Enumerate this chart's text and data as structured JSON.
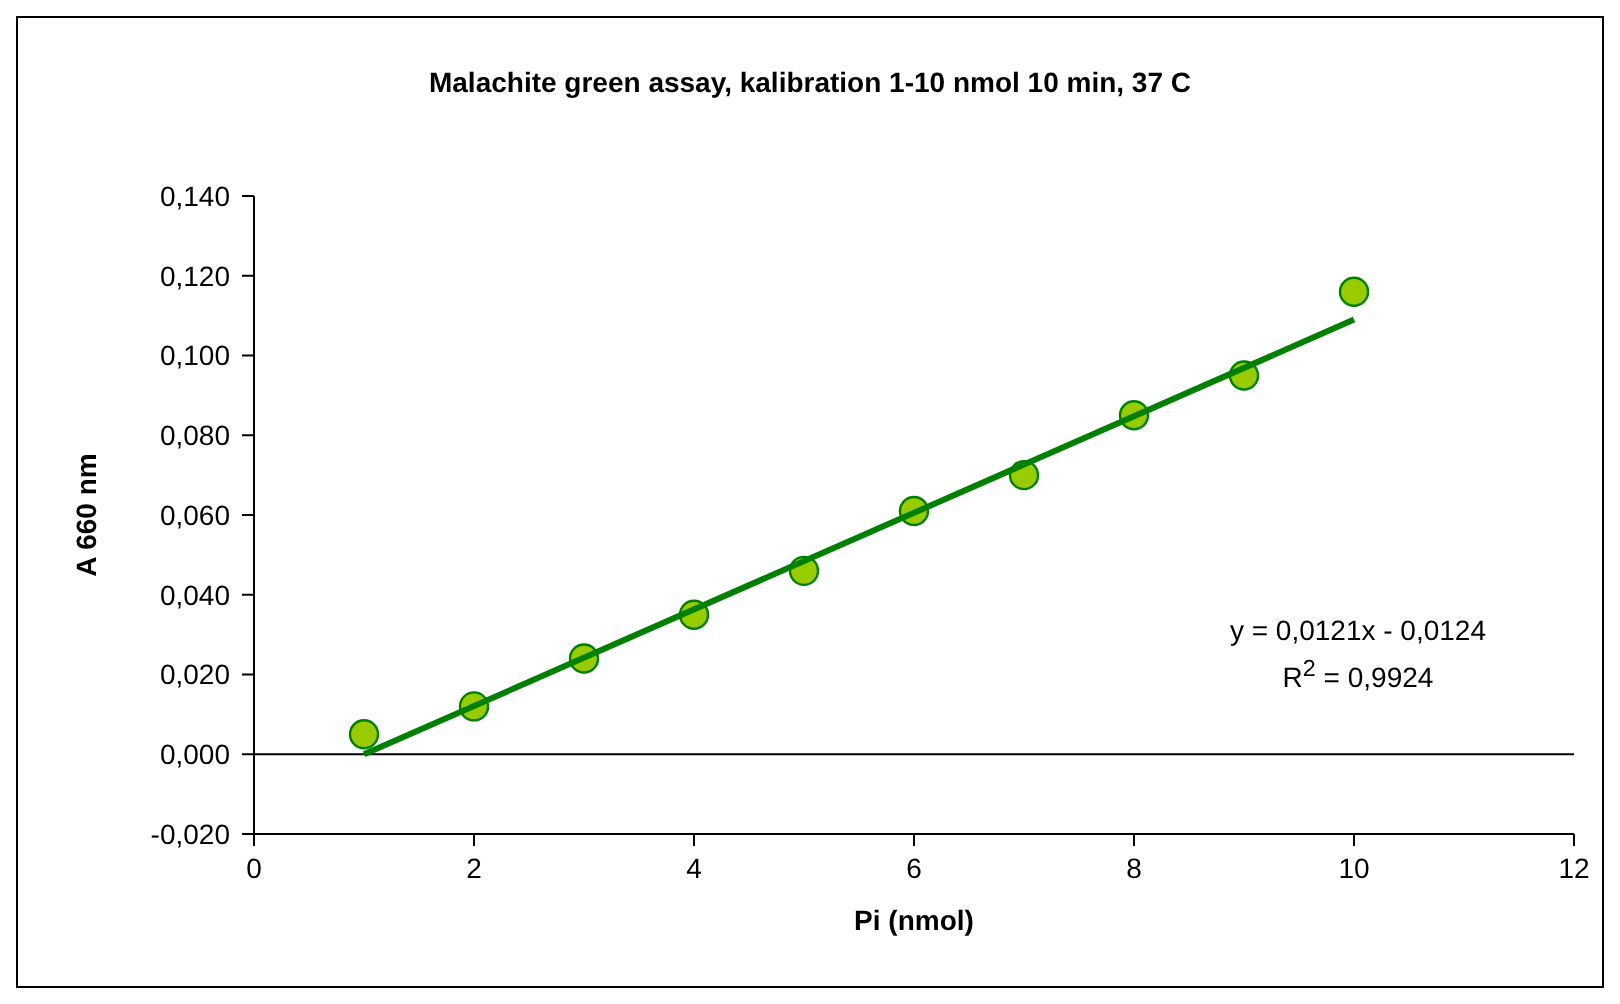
{
  "chart_data": {
    "type": "scatter",
    "title": "Malachite green assay, kalibration 1-10 nmol 10 min, 37 C",
    "xlabel": "Pi (nmol)",
    "ylabel": "A 660 nm",
    "series": [
      {
        "type": "scatter",
        "color": "#99cc00",
        "x": [
          1,
          2,
          3,
          4,
          5,
          6,
          7,
          8,
          9,
          10
        ],
        "values": [
          0.005,
          0.012,
          0.024,
          0.035,
          0.046,
          0.061,
          0.07,
          0.085,
          0.095,
          0.116
        ],
        "marker": "circle"
      },
      {
        "type": "line",
        "color": "#008000",
        "x": [
          1,
          10
        ],
        "values": [
          0.0,
          0.109
        ],
        "marker": "none"
      }
    ],
    "annotations": [
      "y = 0,0121x - 0,0124",
      "R$^{2}$ = 0,9924"
    ],
    "ref_lines": [
      {
        "axis": "y",
        "value": 0,
        "color": "#000000"
      }
    ],
    "xlim": [
      0,
      12
    ],
    "xticks": [
      0,
      2,
      4,
      6,
      8,
      10,
      12
    ],
    "ylim": [
      -0.02,
      0.14
    ],
    "yticks": [
      {
        "value": -0.02,
        "label": "-0,020"
      },
      {
        "value": 0,
        "label": "0,000"
      },
      {
        "value": 0.02,
        "label": "0,020"
      },
      {
        "value": 0.04,
        "label": "0,040"
      },
      {
        "value": 0.06,
        "label": "0,060"
      },
      {
        "value": 0.08,
        "label": "0,080"
      },
      {
        "value": 0.1,
        "label": "0,100"
      },
      {
        "value": 0.12,
        "label": "0,120"
      },
      {
        "value": 0.14,
        "label": "0,140"
      }
    ],
    "grid": false,
    "legend": false
  }
}
